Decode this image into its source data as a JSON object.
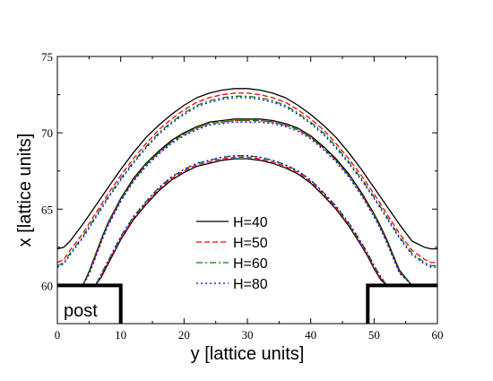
{
  "chart_data": {
    "type": "line",
    "title": "",
    "xlabel": "y [lattice units]",
    "ylabel": "x [lattice units]",
    "xlim": [
      0,
      60
    ],
    "ylim": [
      57.5,
      75
    ],
    "xticks": [
      0,
      10,
      20,
      30,
      40,
      50,
      60
    ],
    "yticks": [
      60,
      65,
      70,
      75
    ],
    "grid": false,
    "legend_position": "center",
    "colors": {
      "H=40": "#000000",
      "H=50": "#ff0000",
      "H=60": "#008000",
      "H=80": "#0000ff"
    },
    "annotations": [
      {
        "text": "post",
        "x": 1,
        "y": 58.2
      }
    ],
    "posts": [
      {
        "x": [
          0,
          10,
          10
        ],
        "y": [
          60,
          60,
          57.5
        ]
      },
      {
        "x": [
          49,
          49,
          60
        ],
        "y": [
          57.5,
          60,
          60
        ]
      }
    ],
    "series": [
      {
        "name": "H=40",
        "curve": "outer",
        "x": [
          0,
          1,
          2,
          4,
          6,
          8,
          10,
          12,
          14,
          16,
          18,
          20,
          22,
          24,
          26,
          28,
          30,
          32,
          34,
          36,
          38,
          40,
          42,
          44,
          46,
          48,
          50,
          52,
          54,
          56,
          58,
          59,
          60
        ],
        "y": [
          62.4,
          62.5,
          62.9,
          64,
          65.2,
          66.4,
          67.6,
          68.7,
          69.7,
          70.5,
          71.2,
          71.8,
          72.3,
          72.6,
          72.8,
          72.9,
          72.9,
          72.8,
          72.6,
          72.3,
          71.8,
          71.2,
          70.5,
          69.7,
          68.7,
          67.6,
          66.4,
          65.2,
          64,
          62.9,
          62.5,
          62.4,
          62.4
        ]
      },
      {
        "name": "H=50",
        "curve": "outer",
        "x": [
          0,
          1,
          2,
          4,
          6,
          8,
          10,
          12,
          14,
          16,
          18,
          20,
          22,
          24,
          26,
          28,
          30,
          32,
          34,
          36,
          38,
          40,
          42,
          44,
          46,
          48,
          50,
          52,
          54,
          56,
          58,
          59,
          60
        ],
        "y": [
          61.5,
          61.7,
          62.3,
          63.4,
          64.7,
          66,
          67.2,
          68.3,
          69.3,
          70.2,
          70.9,
          71.5,
          72,
          72.3,
          72.5,
          72.6,
          72.6,
          72.5,
          72.3,
          72,
          71.5,
          70.9,
          70.2,
          69.3,
          68.3,
          67.2,
          66,
          64.7,
          63.4,
          62.3,
          61.7,
          61.5,
          61.5
        ]
      },
      {
        "name": "H=60",
        "curve": "outer",
        "x": [
          0,
          1,
          2,
          4,
          6,
          8,
          10,
          12,
          14,
          16,
          18,
          20,
          22,
          24,
          26,
          28,
          30,
          32,
          34,
          36,
          38,
          40,
          42,
          44,
          46,
          48,
          50,
          52,
          54,
          56,
          58,
          59,
          60
        ],
        "y": [
          61.3,
          61.5,
          62.1,
          63.2,
          64.5,
          65.8,
          67,
          68.1,
          69.1,
          70,
          70.7,
          71.3,
          71.8,
          72.1,
          72.3,
          72.4,
          72.4,
          72.3,
          72.1,
          71.8,
          71.3,
          70.7,
          70,
          69.1,
          68.1,
          67,
          65.8,
          64.5,
          63.2,
          62.1,
          61.5,
          61.3,
          61.3
        ]
      },
      {
        "name": "H=80",
        "curve": "outer",
        "x": [
          0,
          1,
          2,
          4,
          6,
          8,
          10,
          12,
          14,
          16,
          18,
          20,
          22,
          24,
          26,
          28,
          30,
          32,
          34,
          36,
          38,
          40,
          42,
          44,
          46,
          48,
          50,
          52,
          54,
          56,
          58,
          59,
          60
        ],
        "y": [
          61.2,
          61.4,
          62,
          63.1,
          64.4,
          65.7,
          66.9,
          68,
          69,
          69.9,
          70.6,
          71.2,
          71.7,
          72,
          72.2,
          72.3,
          72.3,
          72.2,
          72,
          71.7,
          71.2,
          70.6,
          69.9,
          69,
          68,
          66.9,
          65.7,
          64.4,
          63.1,
          62,
          61.4,
          61.2,
          61.2
        ]
      },
      {
        "name": "H=40",
        "curve": "middle",
        "x": [
          0,
          4,
          5,
          6,
          7,
          8,
          10,
          12,
          14,
          16,
          18,
          20,
          22,
          24,
          26,
          28,
          30,
          32,
          34,
          36,
          38,
          40,
          42,
          44,
          46,
          48,
          50,
          51,
          52,
          53,
          54,
          56,
          60
        ],
        "y": [
          60,
          60,
          60.9,
          62,
          63.1,
          64.1,
          65.7,
          67,
          68,
          68.8,
          69.5,
          70,
          70.4,
          70.7,
          70.8,
          70.9,
          70.9,
          70.9,
          70.8,
          70.6,
          70.3,
          69.8,
          69.1,
          68.3,
          67.3,
          66.1,
          64.7,
          63.9,
          63,
          62,
          61,
          60,
          60
        ]
      },
      {
        "name": "H=50",
        "curve": "middle",
        "x": [
          0,
          4,
          5,
          6,
          7,
          8,
          10,
          12,
          14,
          16,
          18,
          20,
          22,
          24,
          26,
          28,
          30,
          32,
          34,
          36,
          38,
          40,
          42,
          44,
          46,
          48,
          50,
          51,
          52,
          53,
          54,
          56,
          60
        ],
        "y": [
          60,
          60,
          60.8,
          61.9,
          63,
          64,
          65.6,
          66.9,
          67.9,
          68.7,
          69.4,
          69.9,
          70.3,
          70.6,
          70.7,
          70.8,
          70.8,
          70.8,
          70.7,
          70.5,
          70.2,
          69.7,
          69,
          68.2,
          67.2,
          66,
          64.6,
          63.8,
          62.9,
          61.9,
          60.9,
          60,
          60
        ]
      },
      {
        "name": "H=60",
        "curve": "middle",
        "x": [
          0,
          4,
          5,
          6,
          7,
          8,
          10,
          12,
          14,
          16,
          18,
          20,
          22,
          24,
          26,
          28,
          30,
          32,
          34,
          36,
          38,
          40,
          42,
          44,
          46,
          48,
          50,
          51,
          52,
          53,
          54,
          56,
          60
        ],
        "y": [
          60,
          60,
          60.8,
          61.9,
          63,
          64,
          65.6,
          66.9,
          67.9,
          68.7,
          69.4,
          69.9,
          70.3,
          70.6,
          70.7,
          70.8,
          70.8,
          70.8,
          70.7,
          70.5,
          70.2,
          69.7,
          69,
          68.2,
          67.2,
          66,
          64.6,
          63.8,
          62.9,
          61.9,
          60.9,
          60,
          60
        ]
      },
      {
        "name": "H=80",
        "curve": "middle",
        "x": [
          0,
          4,
          5,
          6,
          7,
          8,
          10,
          12,
          14,
          16,
          18,
          20,
          22,
          24,
          26,
          28,
          30,
          32,
          34,
          36,
          38,
          40,
          42,
          44,
          46,
          48,
          50,
          51,
          52,
          53,
          54,
          56,
          60
        ],
        "y": [
          60,
          60,
          60.7,
          61.8,
          62.9,
          63.9,
          65.5,
          66.8,
          67.8,
          68.6,
          69.3,
          69.8,
          70.2,
          70.5,
          70.6,
          70.7,
          70.7,
          70.7,
          70.6,
          70.4,
          70.1,
          69.6,
          68.9,
          68.1,
          67.1,
          65.9,
          64.5,
          63.7,
          62.8,
          61.8,
          60.8,
          60,
          60
        ]
      },
      {
        "name": "H=40",
        "curve": "inner",
        "x": [
          0,
          6,
          7,
          8,
          9,
          10,
          12,
          14,
          16,
          18,
          20,
          22,
          24,
          26,
          28,
          30,
          32,
          34,
          36,
          38,
          40,
          42,
          44,
          46,
          48,
          49,
          50,
          51,
          52,
          53,
          54,
          60
        ],
        "y": [
          60,
          60,
          60.6,
          61.4,
          62.2,
          63,
          64.3,
          65.3,
          66.2,
          66.9,
          67.4,
          67.8,
          68,
          68.2,
          68.3,
          68.3,
          68.2,
          68,
          67.7,
          67.3,
          66.7,
          65.9,
          65,
          63.9,
          62.6,
          61.9,
          61.1,
          60.4,
          60,
          60,
          60,
          60
        ]
      },
      {
        "name": "H=50",
        "curve": "inner",
        "x": [
          0,
          6,
          7,
          8,
          9,
          10,
          12,
          14,
          16,
          18,
          20,
          22,
          24,
          26,
          28,
          30,
          32,
          34,
          36,
          38,
          40,
          42,
          44,
          46,
          48,
          49,
          50,
          51,
          52,
          53,
          54,
          60
        ],
        "y": [
          60,
          60,
          60.7,
          61.5,
          62.3,
          63.1,
          64.4,
          65.4,
          66.3,
          67,
          67.5,
          67.9,
          68.1,
          68.3,
          68.4,
          68.4,
          68.3,
          68.1,
          67.8,
          67.4,
          66.8,
          66,
          65.1,
          64,
          62.7,
          62,
          61.2,
          60.5,
          60,
          60,
          60,
          60
        ]
      },
      {
        "name": "H=60",
        "curve": "inner",
        "x": [
          0,
          6,
          7,
          8,
          9,
          10,
          12,
          14,
          16,
          18,
          20,
          22,
          24,
          26,
          28,
          30,
          32,
          34,
          36,
          38,
          40,
          42,
          44,
          46,
          48,
          49,
          50,
          51,
          52,
          53,
          54,
          60
        ],
        "y": [
          60,
          60,
          60.8,
          61.6,
          62.4,
          63.2,
          64.5,
          65.5,
          66.4,
          67.1,
          67.6,
          68,
          68.2,
          68.4,
          68.5,
          68.5,
          68.4,
          68.2,
          67.9,
          67.5,
          66.9,
          66.1,
          65.2,
          64.1,
          62.8,
          62.1,
          61.3,
          60.6,
          60,
          60,
          60,
          60
        ]
      },
      {
        "name": "H=80",
        "curve": "inner",
        "x": [
          0,
          6,
          7,
          8,
          9,
          10,
          12,
          14,
          16,
          18,
          20,
          22,
          24,
          26,
          28,
          30,
          32,
          34,
          36,
          38,
          40,
          42,
          44,
          46,
          48,
          49,
          50,
          51,
          52,
          53,
          54,
          60
        ],
        "y": [
          60,
          60,
          60.8,
          61.6,
          62.4,
          63.2,
          64.5,
          65.5,
          66.4,
          67.1,
          67.6,
          68,
          68.2,
          68.4,
          68.5,
          68.5,
          68.4,
          68.2,
          67.9,
          67.5,
          66.9,
          66.1,
          65.2,
          64.1,
          62.8,
          62.1,
          61.3,
          60.6,
          60,
          60,
          60,
          60
        ]
      }
    ],
    "legend": [
      {
        "name": "H=40",
        "color": "#000000",
        "dash": "solid"
      },
      {
        "name": "H=50",
        "color": "#ff0000",
        "dash": "dashed"
      },
      {
        "name": "H=60",
        "color": "#008000",
        "dash": "dash-dot"
      },
      {
        "name": "H=80",
        "color": "#0000ff",
        "dash": "dotted"
      }
    ]
  }
}
